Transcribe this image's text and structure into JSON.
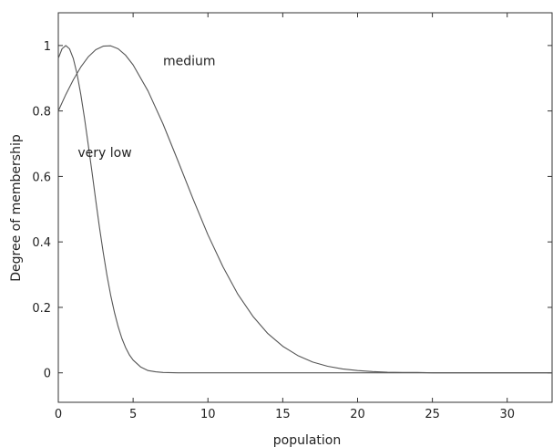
{
  "chart_data": {
    "type": "line",
    "title": "",
    "xlabel": "population",
    "ylabel": "Degree of membership",
    "xlim": [
      0,
      33
    ],
    "ylim": [
      -0.09,
      1.1
    ],
    "grid": false,
    "x_ticks": [
      0,
      5,
      10,
      15,
      20,
      25,
      30
    ],
    "x_tick_labels": [
      "0",
      "5",
      "10",
      "15",
      "20",
      "25",
      "30"
    ],
    "y_ticks": [
      0,
      0.2,
      0.4,
      0.6,
      0.8,
      1
    ],
    "y_tick_labels": [
      "0",
      "0.2",
      "0.4",
      "0.6",
      "0.8",
      "1"
    ],
    "line_color": "#555555",
    "series": [
      {
        "name": "very low",
        "x": [
          0,
          0.25,
          0.5,
          0.75,
          1,
          1.25,
          1.5,
          1.75,
          2,
          2.25,
          2.5,
          2.75,
          3,
          3.25,
          3.5,
          3.75,
          4,
          4.25,
          4.5,
          4.75,
          5,
          5.5,
          6,
          6.5,
          7,
          8,
          10,
          15,
          20,
          25,
          30,
          33
        ],
        "y": [
          0.961,
          0.99,
          1.0,
          0.99,
          0.961,
          0.914,
          0.852,
          0.779,
          0.698,
          0.613,
          0.527,
          0.444,
          0.368,
          0.298,
          0.237,
          0.185,
          0.141,
          0.105,
          0.077,
          0.055,
          0.039,
          0.018,
          0.007,
          0.003,
          0.001,
          0.0,
          0.0,
          0.0,
          0.0,
          0.0,
          0.0,
          0.0
        ]
      },
      {
        "name": "medium",
        "x": [
          0,
          0.5,
          1,
          1.5,
          2,
          2.5,
          3,
          3.5,
          4,
          4.5,
          5,
          6,
          7,
          8,
          9,
          10,
          11,
          12,
          13,
          14,
          15,
          16,
          17,
          18,
          19,
          20,
          21,
          22,
          23,
          24,
          25,
          26,
          28,
          30,
          33
        ],
        "y": [
          0.8,
          0.85,
          0.895,
          0.934,
          0.965,
          0.987,
          0.998,
          0.999,
          0.99,
          0.97,
          0.941,
          0.861,
          0.76,
          0.647,
          0.532,
          0.422,
          0.324,
          0.24,
          0.173,
          0.12,
          0.081,
          0.053,
          0.033,
          0.02,
          0.012,
          0.007,
          0.004,
          0.002,
          0.001,
          0.001,
          0.0,
          0.0,
          0.0,
          0.0,
          0.0
        ]
      }
    ],
    "annotations": [
      {
        "text": "medium",
        "x": 7,
        "y": 0.94
      },
      {
        "text": "very low",
        "x": 1.3,
        "y": 0.66
      }
    ]
  }
}
